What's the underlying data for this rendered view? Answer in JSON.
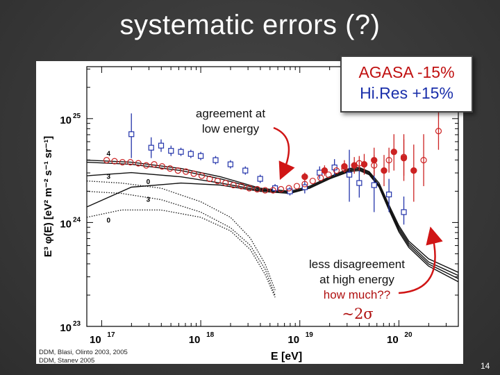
{
  "slide": {
    "title": "systematic errors (?)",
    "page_number": "14",
    "refs": [
      "DDM, Blasi, Olinto 2003, 2005",
      "DDM, Stanev 2005"
    ]
  },
  "callout": {
    "line1": "AGASA -15%",
    "line2": "Hi.Res +15%"
  },
  "annotations": {
    "low": [
      "agreement at",
      "low energy"
    ],
    "high": [
      "less disagreement",
      "at high energy"
    ],
    "question": "how much??",
    "sigma": "~2σ"
  },
  "colors": {
    "agasa": "#cc2222",
    "hires": "#2233aa",
    "arrow": "#d01515"
  },
  "chart_data": {
    "type": "scatter",
    "title": "",
    "xlabel": "E [eV]",
    "ylabel": "E³ φ(E) [eV² m⁻² s⁻¹ sr⁻¹]",
    "xscale": "log",
    "yscale": "log",
    "xlim_log10": [
      16.85,
      20.6
    ],
    "ylim_log10": [
      23.0,
      25.5
    ],
    "x_ticks": [
      {
        "exp": 17,
        "label": "10",
        "sup": "17"
      },
      {
        "exp": 18,
        "label": "10",
        "sup": "18"
      },
      {
        "exp": 19,
        "label": "10",
        "sup": "19"
      },
      {
        "exp": 20,
        "label": "10",
        "sup": "20"
      }
    ],
    "y_ticks": [
      {
        "exp": 23,
        "label": "10",
        "sup": "23"
      },
      {
        "exp": 24,
        "label": "10",
        "sup": "24"
      },
      {
        "exp": 25,
        "label": "10",
        "sup": "25"
      }
    ],
    "grid": false,
    "curve_labels": [
      "4",
      "3",
      "0",
      "3",
      "0"
    ],
    "series": [
      {
        "marker": "open-square",
        "color": "#2233aa",
        "points": [
          {
            "x": 17.3,
            "y": 24.85,
            "lo": 24.62,
            "hi": 25.05
          },
          {
            "x": 17.5,
            "y": 24.72,
            "lo": 24.62,
            "hi": 24.82
          },
          {
            "x": 17.6,
            "y": 24.74,
            "lo": 24.68,
            "hi": 24.8
          },
          {
            "x": 17.7,
            "y": 24.69,
            "lo": 24.64,
            "hi": 24.74
          },
          {
            "x": 17.8,
            "y": 24.68,
            "lo": 24.64,
            "hi": 24.72
          },
          {
            "x": 17.9,
            "y": 24.66,
            "lo": 24.62,
            "hi": 24.7
          },
          {
            "x": 18.0,
            "y": 24.64,
            "lo": 24.6,
            "hi": 24.68
          },
          {
            "x": 18.15,
            "y": 24.6,
            "lo": 24.56,
            "hi": 24.64
          },
          {
            "x": 18.3,
            "y": 24.56,
            "lo": 24.52,
            "hi": 24.6
          },
          {
            "x": 18.45,
            "y": 24.5,
            "lo": 24.46,
            "hi": 24.54
          },
          {
            "x": 18.6,
            "y": 24.42,
            "lo": 24.38,
            "hi": 24.46
          },
          {
            "x": 18.75,
            "y": 24.33,
            "lo": 24.29,
            "hi": 24.37
          },
          {
            "x": 18.9,
            "y": 24.3,
            "lo": 24.26,
            "hi": 24.34
          },
          {
            "x": 19.05,
            "y": 24.34,
            "lo": 24.28,
            "hi": 24.4
          },
          {
            "x": 19.2,
            "y": 24.48,
            "lo": 24.42,
            "hi": 24.54
          },
          {
            "x": 19.35,
            "y": 24.53,
            "lo": 24.45,
            "hi": 24.61
          },
          {
            "x": 19.5,
            "y": 24.46,
            "lo": 24.2,
            "hi": 24.7
          },
          {
            "x": 19.6,
            "y": 24.38,
            "lo": 24.24,
            "hi": 24.5
          },
          {
            "x": 19.75,
            "y": 24.36,
            "lo": 24.1,
            "hi": 24.6
          },
          {
            "x": 19.9,
            "y": 24.27,
            "lo": 24.1,
            "hi": 24.42
          },
          {
            "x": 20.05,
            "y": 24.1,
            "lo": 23.98,
            "hi": 24.25
          }
        ]
      },
      {
        "marker": "open-circle",
        "color": "#cc2222",
        "points": [
          {
            "x": 17.05,
            "y": 24.6
          },
          {
            "x": 17.13,
            "y": 24.59
          },
          {
            "x": 17.21,
            "y": 24.58
          },
          {
            "x": 17.29,
            "y": 24.58
          },
          {
            "x": 17.37,
            "y": 24.57
          },
          {
            "x": 17.45,
            "y": 24.55
          },
          {
            "x": 17.53,
            "y": 24.56
          },
          {
            "x": 17.61,
            "y": 24.54
          },
          {
            "x": 17.69,
            "y": 24.52
          },
          {
            "x": 17.77,
            "y": 24.5
          },
          {
            "x": 17.85,
            "y": 24.49
          },
          {
            "x": 17.93,
            "y": 24.47
          },
          {
            "x": 18.01,
            "y": 24.45
          },
          {
            "x": 18.09,
            "y": 24.42
          },
          {
            "x": 18.17,
            "y": 24.4
          },
          {
            "x": 18.25,
            "y": 24.38
          },
          {
            "x": 18.33,
            "y": 24.36
          },
          {
            "x": 18.41,
            "y": 24.35
          },
          {
            "x": 18.49,
            "y": 24.33
          },
          {
            "x": 18.57,
            "y": 24.32
          },
          {
            "x": 18.65,
            "y": 24.31
          },
          {
            "x": 18.73,
            "y": 24.31
          },
          {
            "x": 18.81,
            "y": 24.32
          },
          {
            "x": 18.89,
            "y": 24.33
          },
          {
            "x": 18.97,
            "y": 24.35
          },
          {
            "x": 19.05,
            "y": 24.37
          },
          {
            "x": 19.13,
            "y": 24.4
          },
          {
            "x": 19.21,
            "y": 24.43
          },
          {
            "x": 19.29,
            "y": 24.46
          },
          {
            "x": 19.37,
            "y": 24.5
          },
          {
            "x": 19.45,
            "y": 24.52
          },
          {
            "x": 19.6,
            "y": 24.57,
            "lo": 24.5,
            "hi": 24.64
          },
          {
            "x": 19.75,
            "y": 24.55,
            "lo": 24.45,
            "hi": 24.65
          },
          {
            "x": 19.9,
            "y": 24.6,
            "lo": 24.48,
            "hi": 24.72
          },
          {
            "x": 20.05,
            "y": 24.63,
            "lo": 24.45,
            "hi": 24.8
          },
          {
            "x": 20.25,
            "y": 24.6,
            "lo": 24.35,
            "hi": 24.85
          },
          {
            "x": 20.4,
            "y": 24.88,
            "lo": 24.7,
            "hi": 25.2
          }
        ]
      },
      {
        "marker": "filled-circle",
        "color": "#cc2222",
        "points": [
          {
            "x": 19.05,
            "y": 24.44,
            "lo": 24.4,
            "hi": 24.48
          },
          {
            "x": 19.25,
            "y": 24.5,
            "lo": 24.45,
            "hi": 24.55
          },
          {
            "x": 19.45,
            "y": 24.54,
            "lo": 24.48,
            "hi": 24.6
          },
          {
            "x": 19.55,
            "y": 24.55,
            "lo": 24.47,
            "hi": 24.63
          },
          {
            "x": 19.65,
            "y": 24.56,
            "lo": 24.46,
            "hi": 24.66
          },
          {
            "x": 19.75,
            "y": 24.6,
            "lo": 24.48,
            "hi": 24.72
          },
          {
            "x": 19.85,
            "y": 24.5,
            "lo": 24.35,
            "hi": 24.65
          },
          {
            "x": 19.95,
            "y": 24.68,
            "lo": 24.5,
            "hi": 24.85
          },
          {
            "x": 20.05,
            "y": 24.62,
            "lo": 24.4,
            "hi": 24.85
          },
          {
            "x": 20.15,
            "y": 24.5,
            "lo": 24.2,
            "hi": 24.75
          }
        ]
      }
    ],
    "model_curves": [
      {
        "style": "solid",
        "points": [
          [
            16.85,
            24.6
          ],
          [
            17.3,
            24.58
          ],
          [
            17.8,
            24.52
          ],
          [
            18.2,
            24.44
          ],
          [
            18.6,
            24.33
          ],
          [
            18.9,
            24.3
          ],
          [
            19.1,
            24.35
          ],
          [
            19.3,
            24.44
          ],
          [
            19.5,
            24.52
          ],
          [
            19.6,
            24.53
          ],
          [
            19.7,
            24.49
          ],
          [
            19.8,
            24.38
          ],
          [
            19.9,
            24.17
          ],
          [
            20.0,
            23.97
          ],
          [
            20.1,
            23.82
          ],
          [
            20.3,
            23.65
          ],
          [
            20.6,
            23.52
          ]
        ]
      },
      {
        "style": "solid",
        "points": [
          [
            16.85,
            24.58
          ],
          [
            17.3,
            24.56
          ],
          [
            17.8,
            24.5
          ],
          [
            18.2,
            24.42
          ],
          [
            18.6,
            24.32
          ],
          [
            18.9,
            24.29
          ],
          [
            19.1,
            24.34
          ],
          [
            19.3,
            24.43
          ],
          [
            19.5,
            24.51
          ],
          [
            19.6,
            24.52
          ],
          [
            19.7,
            24.48
          ],
          [
            19.8,
            24.36
          ],
          [
            19.9,
            24.15
          ],
          [
            20.0,
            23.95
          ],
          [
            20.1,
            23.8
          ],
          [
            20.3,
            23.62
          ],
          [
            20.6,
            23.49
          ]
        ]
      },
      {
        "style": "solid",
        "points": [
          [
            16.85,
            24.45
          ],
          [
            17.3,
            24.48
          ],
          [
            17.8,
            24.44
          ],
          [
            18.2,
            24.38
          ],
          [
            18.6,
            24.31
          ],
          [
            18.9,
            24.29
          ],
          [
            19.1,
            24.33
          ],
          [
            19.3,
            24.42
          ],
          [
            19.5,
            24.5
          ],
          [
            19.6,
            24.51
          ],
          [
            19.7,
            24.47
          ],
          [
            19.8,
            24.35
          ],
          [
            19.9,
            24.14
          ],
          [
            20.0,
            23.93
          ],
          [
            20.1,
            23.78
          ],
          [
            20.3,
            23.6
          ],
          [
            20.6,
            23.46
          ]
        ]
      },
      {
        "style": "solid",
        "points": [
          [
            16.85,
            24.15
          ],
          [
            17.3,
            24.34
          ],
          [
            17.8,
            24.38
          ],
          [
            18.2,
            24.36
          ],
          [
            18.6,
            24.3
          ],
          [
            18.9,
            24.28
          ],
          [
            19.1,
            24.33
          ],
          [
            19.3,
            24.42
          ],
          [
            19.5,
            24.49
          ],
          [
            19.6,
            24.5
          ],
          [
            19.7,
            24.46
          ],
          [
            19.8,
            24.34
          ],
          [
            19.9,
            24.12
          ],
          [
            20.0,
            23.91
          ],
          [
            20.1,
            23.76
          ],
          [
            20.3,
            23.58
          ],
          [
            20.6,
            23.43
          ]
        ]
      },
      {
        "style": "dotted",
        "points": [
          [
            16.85,
            24.3
          ],
          [
            17.2,
            24.28
          ],
          [
            17.6,
            24.22
          ],
          [
            18.0,
            24.1
          ],
          [
            18.3,
            23.95
          ],
          [
            18.5,
            23.78
          ],
          [
            18.65,
            23.55
          ],
          [
            18.75,
            23.3
          ]
        ]
      },
      {
        "style": "dotted",
        "points": [
          [
            16.85,
            24.4
          ],
          [
            17.2,
            24.38
          ],
          [
            17.6,
            24.33
          ],
          [
            18.0,
            24.2
          ],
          [
            18.3,
            24.05
          ],
          [
            18.5,
            23.85
          ],
          [
            18.65,
            23.6
          ],
          [
            18.75,
            23.35
          ]
        ]
      },
      {
        "style": "dotted",
        "points": [
          [
            16.85,
            24.05
          ],
          [
            17.2,
            24.12
          ],
          [
            17.6,
            24.12
          ],
          [
            18.0,
            24.05
          ],
          [
            18.3,
            23.92
          ],
          [
            18.5,
            23.74
          ],
          [
            18.65,
            23.5
          ],
          [
            18.75,
            23.28
          ]
        ]
      }
    ]
  }
}
